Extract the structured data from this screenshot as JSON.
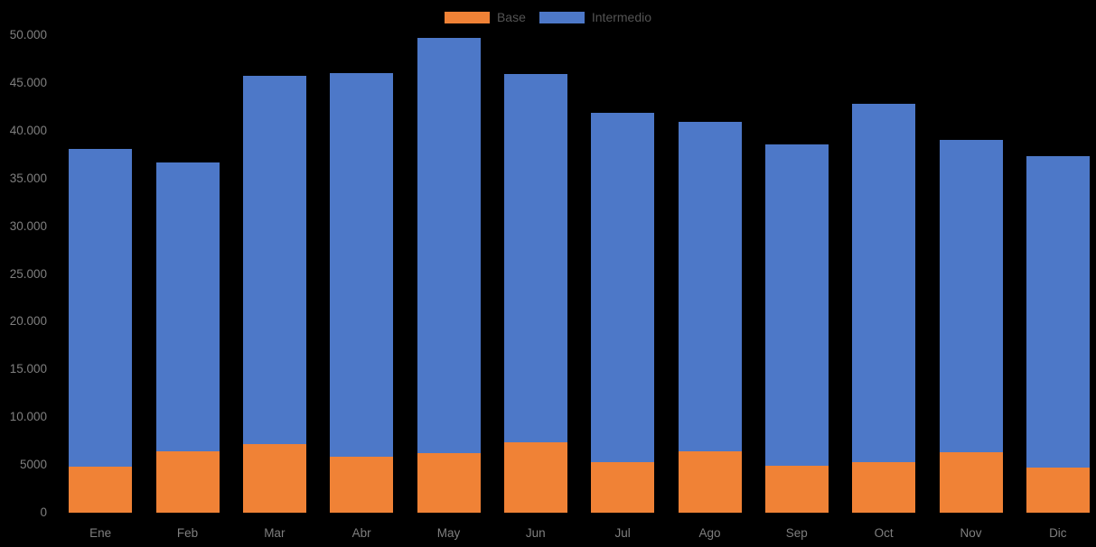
{
  "chart_data": {
    "type": "bar",
    "stacked": true,
    "title": "",
    "xlabel": "",
    "ylabel": "",
    "categories": [
      "Ene",
      "Feb",
      "Mar",
      "Abr",
      "May",
      "Jun",
      "Jul",
      "Ago",
      "Sep",
      "Oct",
      "Nov",
      "Dic"
    ],
    "series": [
      {
        "name": "Base",
        "color": "#F08236",
        "values": [
          4800,
          6400,
          7200,
          5900,
          6200,
          7400,
          5300,
          6400,
          4900,
          5300,
          6300,
          4700
        ]
      },
      {
        "name": "Intermedio",
        "color": "#4D78C8",
        "values": [
          33300,
          30300,
          38500,
          40100,
          43500,
          38500,
          36600,
          34500,
          33700,
          37500,
          32700,
          32600
        ]
      }
    ],
    "totals": [
      38100,
      36700,
      45700,
      46000,
      49700,
      45900,
      41900,
      40900,
      38600,
      42800,
      39000,
      37300
    ],
    "ylim": [
      0,
      50000
    ],
    "y_ticks": [
      {
        "value": 0,
        "label": "0"
      },
      {
        "value": 5000,
        "label": "5000"
      },
      {
        "value": 10000,
        "label": "10.000"
      },
      {
        "value": 15000,
        "label": "15.000"
      },
      {
        "value": 20000,
        "label": "20.000"
      },
      {
        "value": 25000,
        "label": "25.000"
      },
      {
        "value": 30000,
        "label": "30.000"
      },
      {
        "value": 35000,
        "label": "35.000"
      },
      {
        "value": 40000,
        "label": "40.000"
      },
      {
        "value": 45000,
        "label": "45.000"
      },
      {
        "value": 50000,
        "label": "50.000"
      }
    ],
    "grid": "off",
    "legend_position": "top-center",
    "colors": {
      "background": "#000000",
      "axis_label_text": "#7F7F7F",
      "legend_text": "#545454"
    }
  }
}
